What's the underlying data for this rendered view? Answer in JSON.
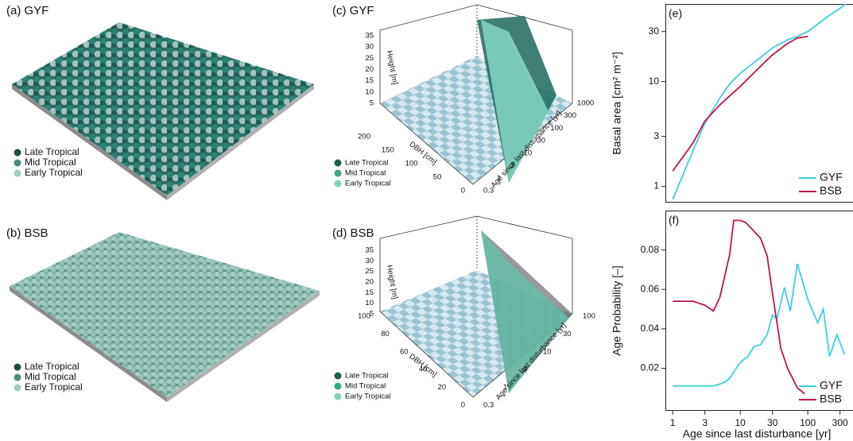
{
  "panels": {
    "a": {
      "label": "(a) GYF",
      "legend": [
        "Late Tropical",
        "Mid Tropical",
        "Early Tropical"
      ]
    },
    "b": {
      "label": "(b) BSB",
      "legend": [
        "Late Tropical",
        "Mid Tropical",
        "Early Tropical"
      ]
    },
    "c": {
      "label": "(c) GYF",
      "z_label": "Height [m]",
      "y_label": "DBH [cm]",
      "x_label": "Age since last disturbance [yr]",
      "z_ticks": [
        35,
        30,
        25,
        20,
        15,
        10,
        5
      ],
      "y_ticks": [
        200,
        150,
        100,
        50,
        0
      ],
      "x_ticks": [
        0.3,
        1,
        3,
        10,
        30,
        100,
        300,
        1000
      ],
      "legend": [
        "Late Tropical",
        "Mid Tropical",
        "Early Tropical"
      ]
    },
    "d": {
      "label": "(d) BSB",
      "z_label": "Height [m]",
      "y_label": "DBH [cm]",
      "x_label": "Age since last disturbance [yr]",
      "z_ticks": [
        35,
        30,
        25,
        20,
        15,
        10,
        5
      ],
      "y_ticks": [
        100,
        80,
        60,
        40,
        20,
        0
      ],
      "x_ticks": [
        0.3,
        1,
        3,
        10,
        30,
        100
      ],
      "legend": [
        "Late Tropical",
        "Mid Tropical",
        "Early Tropical"
      ]
    }
  },
  "chart_data": [
    {
      "type": "line",
      "panel_label": "(e)",
      "y_label": "Basal area [cm² m⁻²]",
      "x_log": true,
      "y_log": true,
      "xlim": [
        0.78,
        520
      ],
      "ylim": [
        0.7,
        55
      ],
      "yticks": [
        1,
        3,
        10,
        30
      ],
      "legend": "lower right",
      "series": [
        {
          "name": "GYF",
          "color": "#3ccfdc",
          "x": [
            1,
            1.5,
            2,
            3,
            5,
            7,
            10,
            20,
            30,
            50,
            70,
            100,
            200,
            300,
            400
          ],
          "values": [
            0.75,
            1.4,
            2.2,
            4,
            7,
            9.5,
            12,
            17,
            21,
            25,
            27,
            30,
            42,
            50,
            58
          ]
        },
        {
          "name": "BSB",
          "color": "#c2134c",
          "x": [
            1,
            2,
            3,
            5,
            10,
            20,
            30,
            50,
            70,
            100
          ],
          "values": [
            1.4,
            2.6,
            4.2,
            6,
            9,
            14,
            18,
            23,
            26,
            27
          ]
        }
      ]
    },
    {
      "type": "line",
      "panel_label": "(f)",
      "y_label": "Age Probability [–]",
      "x_label": "Age since last disturbance [yr]",
      "x_log": true,
      "y_log": false,
      "xlim": [
        0.78,
        520
      ],
      "ylim": [
        -0.0016,
        0.1
      ],
      "xticks": [
        1,
        3,
        10,
        30,
        100,
        300
      ],
      "yticks": [
        0.02,
        0.04,
        0.06,
        0.08
      ],
      "legend": "lower right",
      "series": [
        {
          "name": "GYF",
          "color": "#3ccfdc",
          "x": [
            1,
            3,
            4,
            5,
            6,
            7,
            8,
            10,
            13,
            16,
            20,
            25,
            30,
            35,
            45,
            55,
            70,
            100,
            140,
            170,
            210,
            270,
            350
          ],
          "values": [
            0.011,
            0.011,
            0.011,
            0.012,
            0.013,
            0.015,
            0.018,
            0.023,
            0.026,
            0.031,
            0.032,
            0.037,
            0.047,
            0.045,
            0.061,
            0.049,
            0.073,
            0.055,
            0.043,
            0.05,
            0.026,
            0.037,
            0.027
          ]
        },
        {
          "name": "BSB",
          "color": "#c2134c",
          "x": [
            1,
            2,
            3,
            4,
            5,
            7,
            8,
            10,
            12,
            20,
            25,
            30,
            40,
            50,
            70,
            90
          ],
          "values": [
            0.054,
            0.054,
            0.052,
            0.049,
            0.056,
            0.078,
            0.095,
            0.095,
            0.094,
            0.086,
            0.077,
            0.058,
            0.03,
            0.02,
            0.01,
            0.007
          ]
        }
      ]
    }
  ]
}
